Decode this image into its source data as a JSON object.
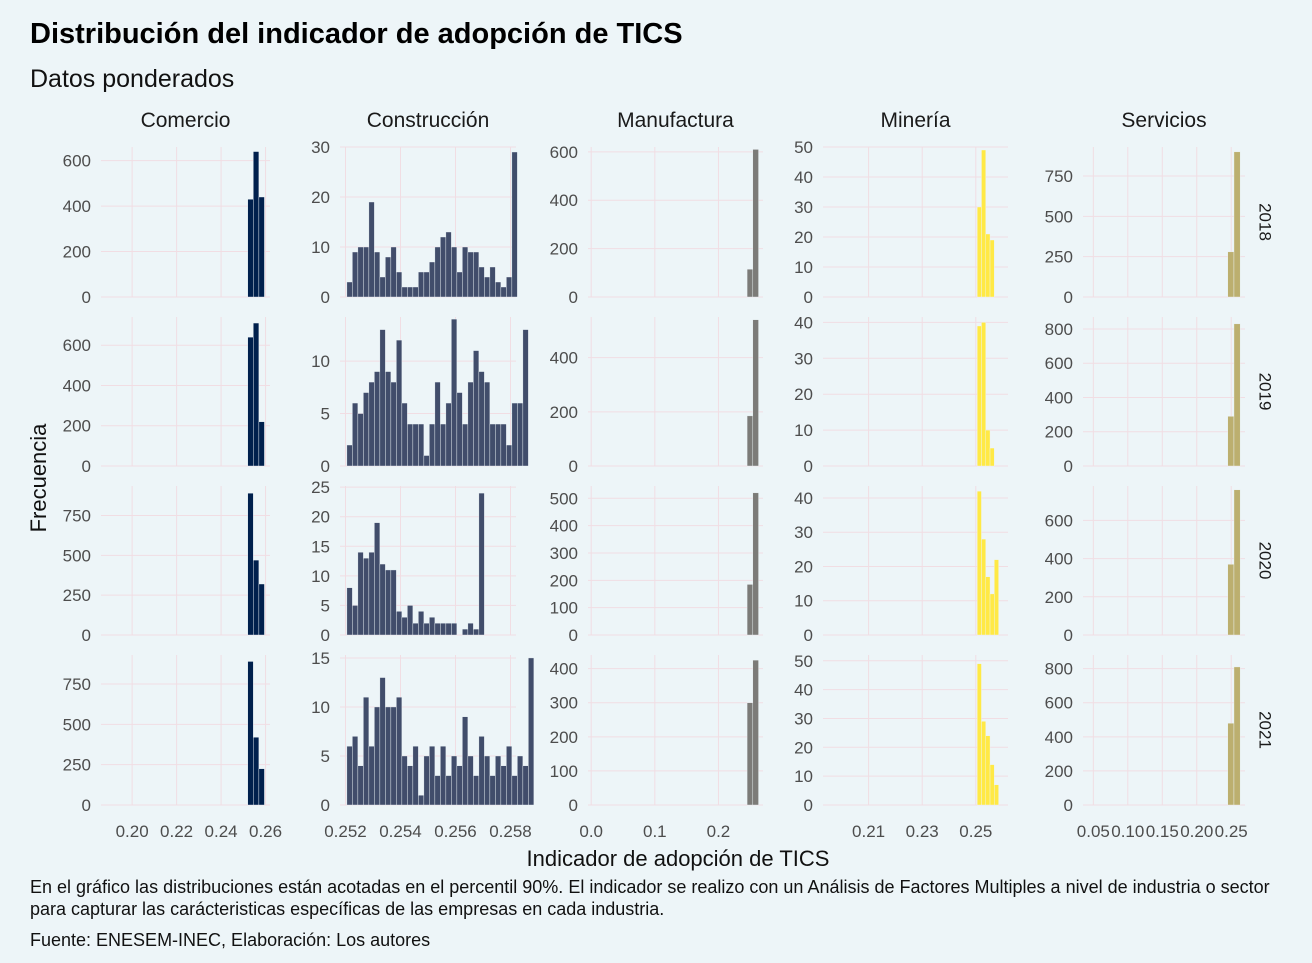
{
  "chart_data": {
    "type": "histogram-facets",
    "title": "Distribución del indicador de adopción de TICS",
    "subtitle": "Datos ponderados",
    "xlabel": "Indicador de adopción de TICS",
    "ylabel": "Frecuencia",
    "caption": "En el gráfico las distribuciones están acotadas en el percentil 90%. El indicador se realizo con un Análisis de Factores Multiples a nivel de industria o sector para capturar las carácteristicas específicas de las empresas en cada industria.",
    "source": "Fuente: ENESEM-INEC, Elaboración: Los autores",
    "grid": true,
    "rows": [
      "2018",
      "2019",
      "2020",
      "2021"
    ],
    "cols": [
      {
        "name": "Comercio",
        "color": "#00204d",
        "xlim": [
          0.186,
          0.262
        ],
        "xticks": [
          0.2,
          0.22,
          0.24,
          0.26
        ],
        "xticklabels": [
          "0.20",
          "0.22",
          "0.24",
          "0.26"
        ],
        "bin_start": 0.252,
        "bin_width": 0.0025
      },
      {
        "name": "Construcción",
        "color": "#414d6b",
        "xlim": [
          0.2518,
          0.2582
        ],
        "xticks": [
          0.252,
          0.254,
          0.256,
          0.258
        ],
        "xticklabels": [
          "0.252",
          "0.254",
          "0.256",
          "0.258"
        ],
        "bin_start": 0.25205,
        "bin_width": 0.0002
      },
      {
        "name": "Manufactura",
        "color": "#7c7b78",
        "xlim": [
          -0.005,
          0.27
        ],
        "xticks": [
          0.0,
          0.1,
          0.2
        ],
        "xticklabels": [
          "0.0",
          "0.1",
          "0.2"
        ],
        "bin_start": 0.245,
        "bin_width": 0.009
      },
      {
        "name": "Minería",
        "color": "#ffe945",
        "xlim": [
          0.193,
          0.262
        ],
        "xticks": [
          0.21,
          0.23,
          0.25
        ],
        "xticklabels": [
          "0.21",
          "0.23",
          "0.25"
        ],
        "bin_start": 0.2505,
        "bin_width": 0.0016
      },
      {
        "name": "Servicios",
        "color": "#bcaf6f",
        "xlim": [
          0.035,
          0.27
        ],
        "xticks": [
          0.05,
          0.1,
          0.15,
          0.2,
          0.25
        ],
        "xticklabels": [
          "0.05",
          "0.10",
          "0.15",
          "0.20",
          "0.25"
        ],
        "bin_start": 0.245,
        "bin_width": 0.009
      }
    ],
    "panels": [
      [
        {
          "ylim": [
            0,
            660
          ],
          "yticks": [
            0,
            200,
            400,
            600
          ],
          "values": [
            430,
            640,
            440
          ]
        },
        {
          "ylim": [
            0,
            30
          ],
          "yticks": [
            0,
            10,
            20,
            30
          ],
          "values": [
            3,
            9,
            10,
            10,
            19,
            9,
            4,
            8,
            10,
            5,
            2,
            2,
            2,
            5,
            5,
            7,
            10,
            12,
            13,
            10,
            5,
            10,
            9,
            9,
            6,
            4,
            6,
            3,
            2,
            4,
            29
          ]
        },
        {
          "ylim": [
            0,
            620
          ],
          "yticks": [
            0,
            200,
            400,
            600
          ],
          "values": [
            115,
            610
          ]
        },
        {
          "ylim": [
            0,
            50
          ],
          "yticks": [
            0,
            10,
            20,
            30,
            40,
            50
          ],
          "values": [
            30,
            49,
            21,
            19
          ]
        },
        {
          "ylim": [
            0,
            930
          ],
          "yticks": [
            0,
            250,
            500,
            750
          ],
          "values": [
            280,
            900
          ]
        }
      ],
      [
        {
          "ylim": [
            0,
            740
          ],
          "yticks": [
            0,
            200,
            400,
            600
          ],
          "values": [
            640,
            710,
            220
          ]
        },
        {
          "ylim": [
            0,
            14.2
          ],
          "yticks": [
            0,
            5,
            10
          ],
          "values": [
            2,
            6,
            5,
            7,
            8,
            9,
            13,
            9,
            8,
            12,
            6,
            4,
            4,
            4,
            1,
            4,
            8,
            4,
            6,
            14,
            7,
            4,
            8,
            11,
            9,
            8,
            4,
            4,
            4,
            2,
            6,
            6,
            13
          ]
        },
        {
          "ylim": [
            0,
            550
          ],
          "yticks": [
            0,
            200,
            400
          ],
          "values": [
            185,
            540
          ]
        },
        {
          "ylim": [
            0,
            41.5
          ],
          "yticks": [
            0,
            10,
            20,
            30,
            40
          ],
          "values": [
            39,
            40,
            10,
            5
          ]
        },
        {
          "ylim": [
            0,
            870
          ],
          "yticks": [
            0,
            200,
            400,
            600,
            800
          ],
          "values": [
            290,
            830
          ]
        }
      ],
      [
        {
          "ylim": [
            0,
            935
          ],
          "yticks": [
            0,
            250,
            500,
            750
          ],
          "values": [
            890,
            470,
            320
          ]
        },
        {
          "ylim": [
            0,
            25.2
          ],
          "yticks": [
            0,
            5,
            10,
            15,
            20,
            25
          ],
          "values": [
            8,
            5,
            14,
            13,
            14,
            19,
            12,
            11,
            11,
            4,
            3,
            5,
            2,
            4,
            2,
            3,
            2,
            2,
            2,
            2,
            0,
            1,
            2,
            1,
            24
          ]
        },
        {
          "ylim": [
            0,
            545
          ],
          "yticks": [
            0,
            100,
            200,
            300,
            400,
            500
          ],
          "values": [
            185,
            520
          ]
        },
        {
          "ylim": [
            0,
            43.5
          ],
          "yticks": [
            0,
            10,
            20,
            30,
            40
          ],
          "values": [
            42,
            28,
            17,
            12,
            22
          ]
        },
        {
          "ylim": [
            0,
            780
          ],
          "yticks": [
            0,
            200,
            400,
            600
          ],
          "values": [
            370,
            760
          ]
        }
      ],
      [
        {
          "ylim": [
            0,
            930
          ],
          "yticks": [
            0,
            250,
            500,
            750
          ],
          "values": [
            890,
            420,
            225
          ]
        },
        {
          "ylim": [
            0,
            15.3
          ],
          "yticks": [
            0,
            5,
            10,
            15
          ],
          "values": [
            6,
            7,
            4,
            11,
            6,
            10,
            13,
            10,
            10,
            11,
            5,
            4,
            6,
            1,
            5,
            6,
            3,
            6,
            3,
            5,
            4,
            9,
            5,
            3,
            7,
            5,
            3,
            5,
            4,
            6,
            3,
            5,
            4,
            15
          ]
        },
        {
          "ylim": [
            0,
            440
          ],
          "yticks": [
            0,
            100,
            200,
            300,
            400
          ],
          "values": [
            300,
            425
          ]
        },
        {
          "ylim": [
            0,
            52
          ],
          "yticks": [
            0,
            10,
            20,
            30,
            40,
            50
          ],
          "values": [
            49,
            29,
            24,
            14,
            7
          ]
        },
        {
          "ylim": [
            0,
            880
          ],
          "yticks": [
            0,
            200,
            400,
            600,
            800
          ],
          "values": [
            480,
            810
          ]
        }
      ]
    ]
  }
}
